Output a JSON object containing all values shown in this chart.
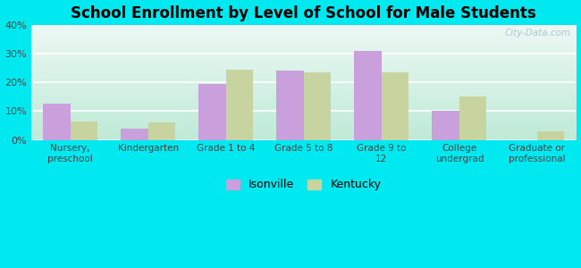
{
  "title": "School Enrollment by Level of School for Male Students",
  "categories": [
    "Nursery,\npreschool",
    "Kindergarten",
    "Grade 1 to 4",
    "Grade 5 to 8",
    "Grade 9 to\n12",
    "College\nundergrad",
    "Graduate or\nprofessional"
  ],
  "isonville": [
    12.5,
    4.0,
    19.5,
    24.0,
    31.0,
    10.0,
    0.0
  ],
  "kentucky": [
    6.5,
    6.0,
    24.5,
    23.5,
    23.5,
    15.0,
    3.0
  ],
  "isonville_color": "#c9a0dc",
  "kentucky_color": "#c8d4a0",
  "bg_outer": "#00e8f0",
  "ylim": [
    0,
    40
  ],
  "yticks": [
    0,
    10,
    20,
    30,
    40
  ],
  "bar_width": 0.35,
  "legend_isonville": "Isonville",
  "legend_kentucky": "Kentucky",
  "watermark": "City-Data.com",
  "gradient_top": "#edf8f0",
  "gradient_bottom": "#c8eedd"
}
